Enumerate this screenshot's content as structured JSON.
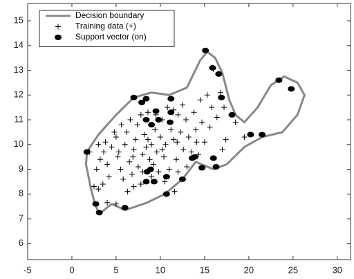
{
  "chart_data": {
    "type": "scatter",
    "xlim": [
      -5,
      31.5
    ],
    "ylim": [
      5.35,
      15.7
    ],
    "xticks": [
      -5,
      0,
      5,
      10,
      15,
      20,
      25,
      30
    ],
    "yticks": [
      6,
      7,
      8,
      9,
      10,
      11,
      12,
      13,
      14,
      15
    ],
    "legend": "upper left",
    "series": [
      {
        "name": "Decision boundary",
        "color": "#888888",
        "marker": "line",
        "x": [
          1.7,
          3,
          5,
          7,
          9,
          11,
          13,
          14.5,
          15.3,
          16.2,
          17,
          17.8,
          18.5,
          19.5,
          21,
          22.5,
          24,
          25.5,
          26.3,
          25.5,
          23.8,
          21.5,
          19.5,
          17.5,
          16,
          14,
          12.5,
          10.5,
          8.5,
          6,
          4.5,
          3.1,
          2.6,
          2.1,
          1.6,
          1.7
        ],
        "y": [
          9.7,
          10.4,
          11.2,
          11.9,
          12.1,
          12.0,
          12.3,
          13.4,
          13.75,
          13.5,
          12.9,
          11.8,
          11.2,
          10.9,
          11.5,
          12.4,
          12.75,
          12.5,
          12.0,
          11.2,
          10.5,
          10.3,
          9.9,
          9.2,
          9.0,
          9.3,
          8.6,
          8.0,
          7.65,
          7.35,
          7.6,
          7.2,
          7.6,
          8.3,
          9.2,
          9.7
        ]
      },
      {
        "name": "Training data (+)",
        "color": "#000000",
        "marker": "plus",
        "x": [
          3,
          3.5,
          2.8,
          3.2,
          3.6,
          4,
          4.2,
          4.5,
          5,
          5.2,
          5.5,
          5.8,
          6,
          6.2,
          6.5,
          6.8,
          7,
          7.2,
          7.4,
          7.5,
          7.8,
          8,
          8.2,
          8.4,
          8.6,
          8.8,
          9,
          9.2,
          9.4,
          9.6,
          9.8,
          10,
          10.2,
          10.4,
          10.6,
          10.8,
          11,
          11.2,
          11.5,
          11.8,
          12,
          12.3,
          12.6,
          12.9,
          13.2,
          13.5,
          13.8,
          14,
          14.3,
          14.7,
          15,
          15.3,
          15.6,
          16,
          16.4,
          16.8,
          17.2,
          17.4,
          18.5,
          19.5,
          17,
          2.5,
          5,
          4,
          6.3,
          7,
          8,
          9,
          3.8,
          4.8,
          5.6,
          6.6,
          7.8,
          9.5,
          11.5,
          12.5,
          14.5,
          15.8,
          13,
          12,
          10.5,
          11.6,
          2,
          3,
          5.3,
          6.9,
          8.6,
          10.2,
          11.9,
          14.1
        ],
        "y": [
          8.2,
          8.4,
          9.0,
          9.4,
          9.7,
          9.2,
          8.7,
          9.9,
          10.3,
          9.5,
          9.0,
          8.6,
          10.0,
          10.5,
          9.3,
          8.8,
          9.8,
          10.2,
          10.8,
          9.1,
          8.4,
          9.6,
          10.4,
          9.9,
          11.3,
          9.4,
          10.0,
          9.2,
          10.6,
          9.7,
          8.9,
          10.3,
          11.0,
          9.5,
          10.0,
          11.5,
          9.0,
          10.6,
          10.2,
          9.4,
          11.2,
          10.5,
          9.8,
          11.0,
          10.3,
          9.7,
          11.3,
          10.6,
          9.6,
          10.9,
          10.1,
          12.0,
          10.7,
          13.05,
          11.1,
          12.1,
          11.5,
          10.2,
          10.9,
          10.3,
          9.8,
          8.3,
          7.6,
          7.65,
          8.1,
          8.3,
          8.9,
          8.7,
          10.1,
          10.5,
          10.8,
          11.0,
          11.2,
          11.2,
          11.4,
          11.6,
          11.8,
          11.5,
          9.1,
          8.9,
          8.5,
          8.1,
          9.7,
          10.0,
          9.7,
          9.5,
          10.2,
          9.8,
          10.1,
          10.1
        ]
      },
      {
        "name": "Support vector (on)",
        "color": "#000000",
        "marker": "dot",
        "x": [
          1.7,
          2.7,
          3.1,
          6.0,
          7.0,
          7.9,
          8.4,
          9.5,
          8.4,
          9.0,
          11.1,
          11.2,
          9.8,
          8.9,
          8.5,
          8.4,
          9.3,
          10.7,
          10.7,
          11.2,
          12.5,
          13.6,
          13.9,
          15.1,
          14.7,
          15.9,
          16.6,
          16.0,
          16.3,
          16.9,
          18.1,
          20.2,
          21.5,
          23.4,
          24.8
        ],
        "y": [
          9.7,
          7.6,
          7.25,
          7.45,
          11.9,
          11.7,
          11.85,
          11.35,
          11.0,
          10.8,
          10.9,
          11.3,
          11.0,
          9.0,
          8.9,
          8.5,
          8.5,
          8.7,
          8.0,
          11.85,
          8.6,
          9.45,
          9.5,
          13.8,
          9.06,
          13.1,
          12.85,
          9.45,
          9.1,
          11.9,
          11.2,
          10.4,
          10.4,
          12.6,
          12.25
        ]
      }
    ]
  }
}
